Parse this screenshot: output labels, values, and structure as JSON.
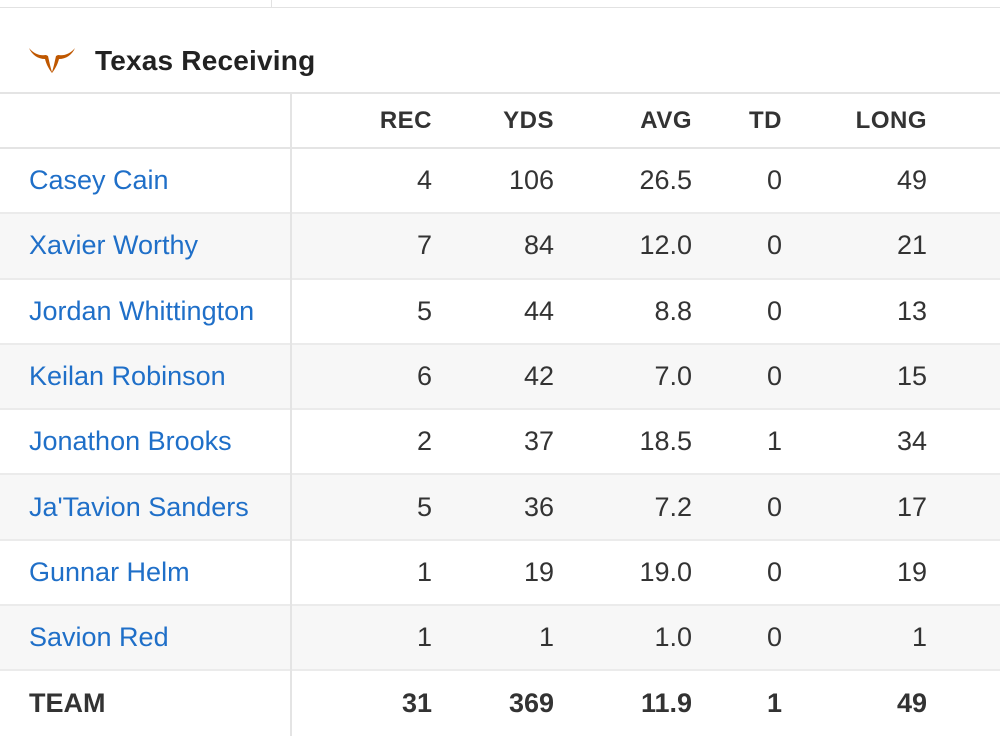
{
  "section": {
    "title": "Texas Receiving",
    "logo_icon": "longhorn-logo-icon",
    "logo_color": "#bf5700"
  },
  "colors": {
    "link": "#1f6fc8",
    "text": "#333333",
    "row_alt": "#f7f7f7",
    "border": "#e4e4e4"
  },
  "table": {
    "headers": {
      "name": "",
      "rec": "REC",
      "yds": "YDS",
      "avg": "AVG",
      "td": "TD",
      "long": "LONG"
    },
    "rows": [
      {
        "name": "Casey Cain",
        "rec": "4",
        "yds": "106",
        "avg": "26.5",
        "td": "0",
        "long": "49"
      },
      {
        "name": "Xavier Worthy",
        "rec": "7",
        "yds": "84",
        "avg": "12.0",
        "td": "0",
        "long": "21"
      },
      {
        "name": "Jordan Whittington",
        "rec": "5",
        "yds": "44",
        "avg": "8.8",
        "td": "0",
        "long": "13"
      },
      {
        "name": "Keilan Robinson",
        "rec": "6",
        "yds": "42",
        "avg": "7.0",
        "td": "0",
        "long": "15"
      },
      {
        "name": "Jonathon Brooks",
        "rec": "2",
        "yds": "37",
        "avg": "18.5",
        "td": "1",
        "long": "34"
      },
      {
        "name": "Ja'Tavion Sanders",
        "rec": "5",
        "yds": "36",
        "avg": "7.2",
        "td": "0",
        "long": "17"
      },
      {
        "name": "Gunnar Helm",
        "rec": "1",
        "yds": "19",
        "avg": "19.0",
        "td": "0",
        "long": "19"
      },
      {
        "name": "Savion Red",
        "rec": "1",
        "yds": "1",
        "avg": "1.0",
        "td": "0",
        "long": "1"
      }
    ],
    "team": {
      "name": "TEAM",
      "rec": "31",
      "yds": "369",
      "avg": "11.9",
      "td": "1",
      "long": "49"
    }
  }
}
